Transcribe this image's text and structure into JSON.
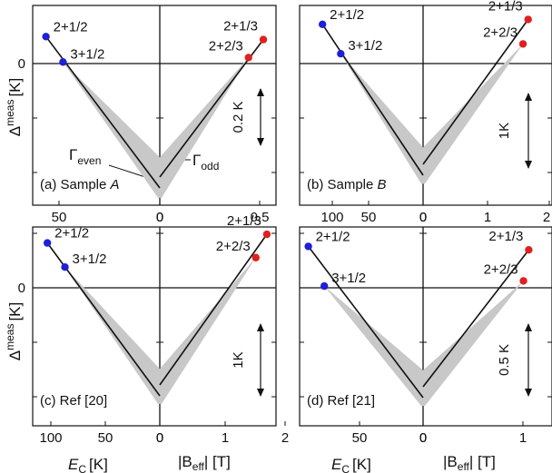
{
  "figure": {
    "y_axis_label_main": "Δ",
    "y_axis_label_sup": "meas",
    "y_axis_label_unit": "[K]",
    "x_axis_left_main": "E",
    "x_axis_left_sub": "C",
    "x_axis_left_unit": "[K]",
    "x_axis_right_main": "|B",
    "x_axis_right_sub": "eff",
    "x_axis_right_unit": "| [T]",
    "gamma_even_main": "Γ",
    "gamma_even_sub": "even",
    "gamma_odd_main": "Γ",
    "gamma_odd_sub": "odd",
    "colors": {
      "blue": "#1f1fd6",
      "red": "#e02020",
      "band": "#c8c8c8",
      "line": "#111111"
    }
  },
  "chart_data": [
    {
      "type": "line",
      "panel_label": "(a) Sample ",
      "panel_label_italic": "A",
      "x_left_ticks": [
        "50",
        "0"
      ],
      "x_right_ticks": [
        "0",
        "0.5"
      ],
      "x_left_range": [
        0,
        67
      ],
      "x_right_range": [
        0,
        0.55
      ],
      "scale_text": "0.2 K",
      "y_zero_label": "0",
      "series": [
        {
          "points": [
            {
              "label": "2+1/2",
              "x": 60,
              "y": 0.09,
              "color": "blue"
            },
            {
              "label": "3+1/2",
              "x": 51,
              "y": 0.005,
              "color": "blue"
            }
          ]
        },
        {
          "points": [
            {
              "label": "2+1/3",
              "x": 0.49,
              "y": 0.08,
              "color": "red"
            },
            {
              "label": "2+2/3",
              "x": 0.42,
              "y": 0.02,
              "color": "red"
            }
          ]
        }
      ]
    },
    {
      "type": "line",
      "panel_label": "(b) Sample ",
      "panel_label_italic": "B",
      "x_left_ticks": [
        "100",
        "50",
        "0"
      ],
      "x_right_ticks": [
        "0",
        "1",
        "2"
      ],
      "x_left_range": [
        0,
        135
      ],
      "x_right_range": [
        0,
        2.0
      ],
      "scale_text": "1K",
      "y_zero_label": "",
      "series": [
        {
          "points": [
            {
              "label": "2+1/2",
              "x": 110,
              "y": 0.4,
              "color": "blue"
            },
            {
              "label": "3+1/2",
              "x": 90,
              "y": 0.1,
              "color": "blue"
            }
          ]
        },
        {
          "points": [
            {
              "label": "2+1/3",
              "x": 1.63,
              "y": 0.45,
              "color": "red"
            },
            {
              "label": "2+2/3",
              "x": 1.55,
              "y": 0.2,
              "color": "red"
            }
          ]
        }
      ]
    },
    {
      "type": "line",
      "panel_label": "(c) Ref [20]",
      "panel_label_italic": "",
      "x_left_ticks": [
        "100",
        "50",
        "0"
      ],
      "x_right_ticks": [
        "0",
        "1",
        "2"
      ],
      "x_left_range": [
        0,
        130
      ],
      "x_right_range": [
        0,
        1.9
      ],
      "scale_text": "1K",
      "y_zero_label": "0",
      "series": [
        {
          "points": [
            {
              "label": "2+1/2",
              "x": 115,
              "y": 0.52,
              "color": "blue"
            },
            {
              "label": "3+1/2",
              "x": 97,
              "y": 0.24,
              "color": "blue"
            }
          ]
        },
        {
          "points": [
            {
              "label": "2+1/3",
              "x": 1.75,
              "y": 0.62,
              "color": "red"
            },
            {
              "label": "2+2/3",
              "x": 1.57,
              "y": 0.35,
              "color": "red"
            }
          ]
        }
      ]
    },
    {
      "type": "line",
      "panel_label": "(d) Ref [21]",
      "panel_label_italic": "",
      "x_left_ticks": [
        "50",
        "0"
      ],
      "x_right_ticks": [
        "0",
        "1"
      ],
      "x_left_range": [
        0,
        85
      ],
      "x_right_range": [
        0,
        1.22
      ],
      "scale_text": "0.5 K",
      "y_zero_label": "",
      "series": [
        {
          "points": [
            {
              "label": "2+1/2",
              "x": 79,
              "y": 0.24,
              "color": "blue"
            },
            {
              "label": "3+1/2",
              "x": 68,
              "y": 0.01,
              "color": "blue"
            }
          ]
        },
        {
          "points": [
            {
              "label": "2+1/3",
              "x": 1.0,
              "y": 0.22,
              "color": "red"
            },
            {
              "label": "2+2/3",
              "x": 0.95,
              "y": 0.04,
              "color": "red"
            }
          ]
        }
      ]
    }
  ]
}
